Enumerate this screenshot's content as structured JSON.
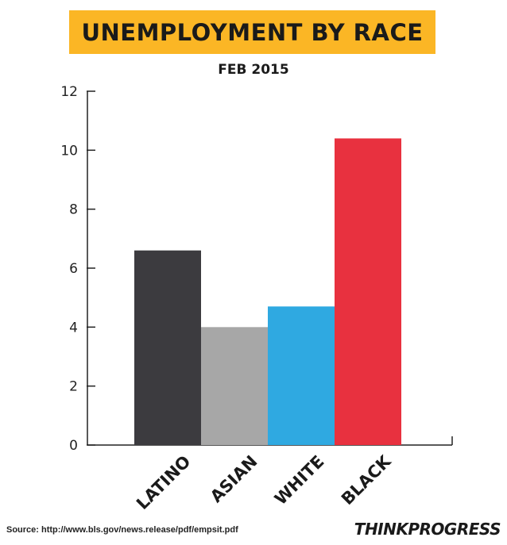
{
  "header": {
    "title": "UNEMPLOYMENT BY RACE",
    "subtitle": "FEB 2015"
  },
  "chart_data": {
    "type": "bar",
    "categories": [
      "LATINO",
      "ASIAN",
      "WHITE",
      "BLACK"
    ],
    "values": [
      6.6,
      4.0,
      4.7,
      10.4
    ],
    "colors": [
      "#3c3b3f",
      "#a7a7a7",
      "#2fa9e1",
      "#e8313f"
    ],
    "yticks": [
      0,
      2,
      4,
      6,
      8,
      10,
      12
    ],
    "ylim": [
      0,
      12
    ],
    "grid": false
  },
  "footer": {
    "source": "Source: http://www.bls.gov/news.release/pdf/empsit.pdf",
    "brand": "THINKPROGRESS"
  }
}
